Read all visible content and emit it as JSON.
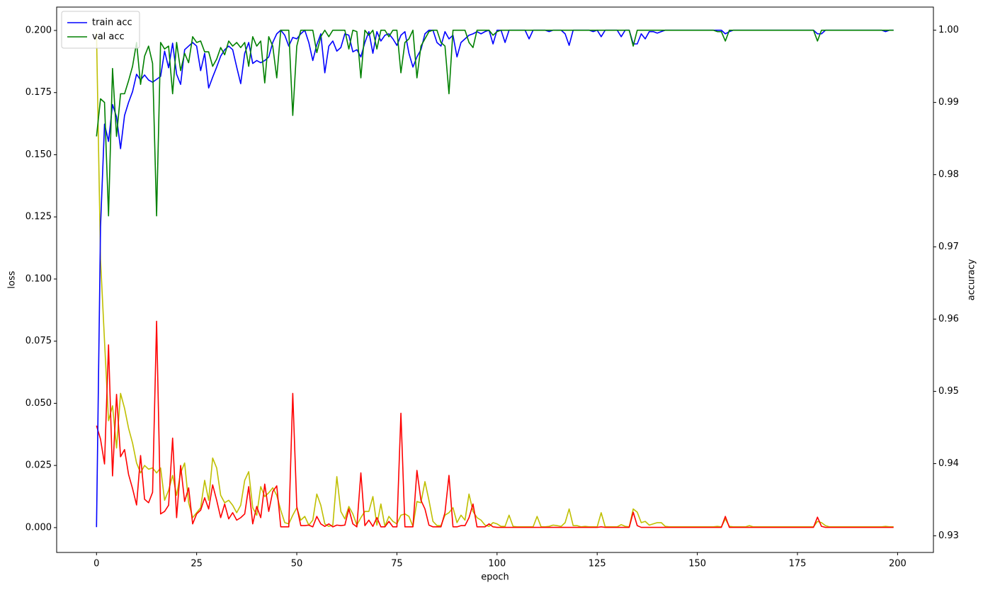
{
  "chart_data": {
    "type": "line",
    "x_label": "epoch",
    "y_label": "loss",
    "y2_label": "accuracy",
    "xlim": [
      -9.95,
      208.95
    ],
    "xticks": [
      0,
      25,
      50,
      75,
      100,
      125,
      150,
      175,
      200
    ],
    "ylim": [
      -0.01,
      0.2094
    ],
    "yticks": [
      {
        "value": 0,
        "label": "0.000"
      },
      {
        "value": 0.025,
        "label": "0.025"
      },
      {
        "value": 0.05,
        "label": "0.050"
      },
      {
        "value": 0.075,
        "label": "0.075"
      },
      {
        "value": 0.1,
        "label": "0.100"
      },
      {
        "value": 0.125,
        "label": "0.125"
      },
      {
        "value": 0.15,
        "label": "0.150"
      },
      {
        "value": 0.175,
        "label": "0.175"
      },
      {
        "value": 0.2,
        "label": "0.200"
      }
    ],
    "y2lim": [
      0.9277,
      1.0032
    ],
    "y2ticks": [
      0.93,
      0.94,
      0.95,
      0.96,
      0.97,
      0.98,
      0.99,
      {
        "value": 1,
        "label": "1.00"
      }
    ],
    "legend": "upper left",
    "x": [
      0,
      1,
      2,
      3,
      4,
      5,
      6,
      7,
      8,
      9,
      10,
      11,
      12,
      13,
      14,
      15,
      16,
      17,
      18,
      19,
      20,
      21,
      22,
      23,
      24,
      25,
      26,
      27,
      28,
      29,
      30,
      31,
      32,
      33,
      34,
      35,
      36,
      37,
      38,
      39,
      40,
      41,
      42,
      43,
      44,
      45,
      46,
      47,
      48,
      49,
      50,
      51,
      52,
      53,
      54,
      55,
      56,
      57,
      58,
      59,
      60,
      61,
      62,
      63,
      64,
      65,
      66,
      67,
      68,
      69,
      70,
      71,
      72,
      73,
      74,
      75,
      76,
      77,
      78,
      79,
      80,
      81,
      82,
      83,
      84,
      85,
      86,
      87,
      88,
      89,
      90,
      91,
      92,
      93,
      94,
      95,
      96,
      97,
      98,
      99,
      100,
      101,
      102,
      103,
      104,
      105,
      106,
      107,
      108,
      109,
      110,
      111,
      112,
      113,
      114,
      115,
      116,
      117,
      118,
      119,
      120,
      121,
      122,
      123,
      124,
      125,
      126,
      127,
      128,
      129,
      130,
      131,
      132,
      133,
      134,
      135,
      136,
      137,
      138,
      139,
      140,
      141,
      142,
      143,
      144,
      145,
      146,
      147,
      148,
      149,
      150,
      151,
      152,
      153,
      154,
      155,
      156,
      157,
      158,
      159,
      160,
      161,
      162,
      163,
      164,
      165,
      166,
      167,
      168,
      169,
      170,
      171,
      172,
      173,
      174,
      175,
      176,
      177,
      178,
      179,
      180,
      181,
      182,
      183,
      184,
      185,
      186,
      187,
      188,
      189,
      190,
      191,
      192,
      193,
      194,
      195,
      196,
      197,
      198,
      199
    ],
    "series": [
      {
        "color": "#bfbf00",
        "axis": "y",
        "values": [
          0.199,
          0.108,
          0.075,
          0.043,
          0.049,
          0.032,
          0.054,
          0.048,
          0.04,
          0.034,
          0.026,
          0.022,
          0.025,
          0.0235,
          0.024,
          0.022,
          0.024,
          0.011,
          0.015,
          0.021,
          0.013,
          0.022,
          0.026,
          0.01,
          0.004,
          0.006,
          0.008,
          0.019,
          0.011,
          0.028,
          0.024,
          0.013,
          0.01,
          0.011,
          0.009,
          0.006,
          0.009,
          0.019,
          0.0225,
          0.008,
          0.005,
          0.0165,
          0.0125,
          0.014,
          0.016,
          0.013,
          0.007,
          0.002,
          0.0015,
          0.005,
          0.008,
          0.003,
          0.0045,
          0.001,
          0.003,
          0.0135,
          0.009,
          0.0015,
          0.0005,
          0.001,
          0.0205,
          0.0065,
          0.0035,
          0.0085,
          0.0055,
          0.001,
          0.004,
          0.0065,
          0.0065,
          0.0125,
          0.001,
          0.0095,
          0.0005,
          0.0045,
          0.0025,
          0.0015,
          0.005,
          0.0055,
          0.0045,
          0.0005,
          0.0105,
          0.01,
          0.0185,
          0.011,
          0.0025,
          0.0008,
          0.0008,
          0.005,
          0.006,
          0.008,
          0.002,
          0.005,
          0.003,
          0.0135,
          0.0065,
          0.004,
          0.003,
          0.001,
          0.0005,
          0.002,
          0.0015,
          0.0005,
          0.0005,
          0.005,
          0.0005,
          0.0003,
          0.0003,
          0.0003,
          0.0003,
          0.0003,
          0.0045,
          0.0003,
          0.0003,
          0.0005,
          0.001,
          0.0008,
          0.0005,
          0.002,
          0.0075,
          0.0008,
          0.0008,
          0.0003,
          0.0005,
          0.0003,
          0.0003,
          0.0003,
          0.006,
          0.0003,
          0.0003,
          0.0003,
          0.0003,
          0.0012,
          0.0005,
          0.0003,
          0.0075,
          0.0062,
          0.002,
          0.0025,
          0.001,
          0.0015,
          0.002,
          0.002,
          0.0005,
          0.0003,
          0.0003,
          0.0003,
          0.0003,
          0.0003,
          0.0003,
          0.0003,
          0.0003,
          0.0003,
          0.0003,
          0.0003,
          0.0003,
          0.0005,
          0.0003,
          0.0035,
          0.0005,
          0.0003,
          0.0003,
          0.0003,
          0.0003,
          0.0008,
          0.0003,
          0.0003,
          0.0003,
          0.0003,
          0.0003,
          0.0003,
          0.0003,
          0.0003,
          0.0003,
          0.0003,
          0.0003,
          0.0003,
          0.0003,
          0.0003,
          0.0003,
          0.0003,
          0.0025,
          0.002,
          0.0008,
          0.0003,
          0.0003,
          0.0003,
          0.0003,
          0.0003,
          0.0003,
          0.0003,
          0.0003,
          0.0003,
          0.0003,
          0.0003,
          0.0003,
          0.0003,
          0.0003,
          0.0005,
          0.0003,
          0.0003
        ]
      },
      {
        "color": "#ff0000",
        "axis": "y",
        "values": [
          0.041,
          0.0356,
          0.0256,
          0.0735,
          0.0208,
          0.0536,
          0.0285,
          0.0314,
          0.0214,
          0.0157,
          0.0091,
          0.029,
          0.0114,
          0.01,
          0.0142,
          0.083,
          0.0055,
          0.0065,
          0.009,
          0.036,
          0.004,
          0.025,
          0.0105,
          0.016,
          0.0015,
          0.0055,
          0.007,
          0.012,
          0.0075,
          0.0172,
          0.011,
          0.004,
          0.0095,
          0.0035,
          0.006,
          0.003,
          0.004,
          0.0055,
          0.0165,
          0.0015,
          0.0085,
          0.004,
          0.0175,
          0.0065,
          0.0145,
          0.0168,
          0.0003,
          0.0003,
          0.0003,
          0.054,
          0.0085,
          0.0008,
          0.0008,
          0.001,
          0.0003,
          0.0045,
          0.0015,
          0.0005,
          0.0015,
          0.0003,
          0.001,
          0.0008,
          0.001,
          0.0075,
          0.0015,
          0.0003,
          0.022,
          0.0008,
          0.003,
          0.0005,
          0.004,
          0.0003,
          0.0003,
          0.0025,
          0.0003,
          0.0003,
          0.046,
          0.0003,
          0.0003,
          0.0003,
          0.023,
          0.011,
          0.0075,
          0.001,
          0.0003,
          0.0003,
          0.0003,
          0.006,
          0.021,
          0.0003,
          0.0003,
          0.0008,
          0.0008,
          0.004,
          0.0095,
          0.0003,
          0.0003,
          0.0003,
          0.0015,
          0.0003,
          0.0001,
          0.0001,
          0.0001,
          0.0001,
          0.0001,
          0.0001,
          0.0001,
          0.0001,
          0.0001,
          0.0001,
          0.0001,
          0.0001,
          0.0001,
          0.0001,
          0.0001,
          0.0001,
          0.0001,
          0.0001,
          0.0001,
          0.0001,
          0.0001,
          0.0001,
          0.0001,
          0.0001,
          0.0001,
          0.0001,
          0.0003,
          0.0001,
          0.0001,
          0.0001,
          0.0001,
          0.0001,
          0.0001,
          0.0001,
          0.0062,
          0.0008,
          0.0001,
          0.0001,
          0.0001,
          0.0001,
          0.0001,
          0.0001,
          0.0001,
          0.0001,
          0.0001,
          0.0001,
          0.0001,
          0.0001,
          0.0001,
          0.0001,
          0.0001,
          0.0001,
          0.0001,
          0.0001,
          0.0001,
          0.0001,
          0.0001,
          0.0045,
          0.0001,
          0.0001,
          0.0001,
          0.0001,
          0.0001,
          0.0001,
          0.0001,
          0.0001,
          0.0001,
          0.0001,
          0.0001,
          0.0001,
          0.0001,
          0.0001,
          0.0001,
          0.0001,
          0.0001,
          0.0001,
          0.0001,
          0.0001,
          0.0001,
          0.0001,
          0.0042,
          0.0005,
          0.0001,
          0.0001,
          0.0001,
          0.0001,
          0.0001,
          0.0001,
          0.0001,
          0.0001,
          0.0001,
          0.0001,
          0.0001,
          0.0001,
          0.0001,
          0.0001,
          0.0001,
          0.0001,
          0.0001,
          0.0001
        ]
      },
      {
        "name": "train acc",
        "color": "#0000ff",
        "axis": "y2",
        "values": [
          0.9312,
          0.9728,
          0.987,
          0.9846,
          0.9897,
          0.988,
          0.9836,
          0.9882,
          0.99,
          0.9915,
          0.9939,
          0.9931,
          0.9938,
          0.9931,
          0.9928,
          0.9932,
          0.9936,
          0.9971,
          0.9948,
          0.9982,
          0.9939,
          0.9925,
          0.9973,
          0.9978,
          0.9983,
          0.9978,
          0.9944,
          0.9968,
          0.992,
          0.9935,
          0.9949,
          0.9964,
          0.9973,
          0.9978,
          0.9973,
          0.9949,
          0.9926,
          0.9968,
          0.9983,
          0.9954,
          0.9958,
          0.9955,
          0.9958,
          0.9963,
          0.9983,
          0.9995,
          1.0,
          0.9993,
          0.9978,
          0.999,
          0.9988,
          0.9995,
          1.0,
          0.9983,
          0.9958,
          0.998,
          0.9995,
          0.9941,
          0.9978,
          0.9985,
          0.9971,
          0.9976,
          0.9995,
          0.9993,
          0.997,
          0.9973,
          0.9963,
          0.9983,
          0.9998,
          0.9968,
          0.9998,
          0.9985,
          0.9993,
          0.9995,
          0.9988,
          0.9979,
          0.9993,
          0.9998,
          0.9968,
          0.9949,
          0.9963,
          0.9973,
          0.9995,
          1.0,
          1.0,
          0.9983,
          0.9978,
          0.9998,
          0.9988,
          0.9993,
          0.9963,
          0.9983,
          0.9988,
          0.9993,
          0.9995,
          0.9998,
          0.9995,
          0.9998,
          1.0,
          0.9981,
          1.0,
          1.0,
          0.9983,
          1.0,
          1.0,
          1.0,
          1.0,
          1.0,
          0.9988,
          1.0,
          1.0,
          1.0,
          1.0,
          0.9998,
          1.0,
          1.0,
          1.0,
          0.9995,
          0.9979,
          1.0,
          1.0,
          1.0,
          1.0,
          1.0,
          0.9998,
          1.0,
          0.9991,
          1.0,
          1.0,
          1.0,
          1.0,
          0.9991,
          1.0,
          1.0,
          0.9981,
          0.9981,
          0.9995,
          0.9988,
          0.9998,
          0.9998,
          0.9996,
          0.9998,
          1.0,
          1.0,
          1.0,
          1.0,
          1.0,
          1.0,
          1.0,
          1.0,
          1.0,
          1.0,
          1.0,
          1.0,
          1.0,
          1.0,
          1.0,
          0.9995,
          0.9998,
          1.0,
          1.0,
          1.0,
          1.0,
          1.0,
          1.0,
          1.0,
          1.0,
          1.0,
          1.0,
          1.0,
          1.0,
          1.0,
          1.0,
          1.0,
          1.0,
          1.0,
          1.0,
          1.0,
          1.0,
          1.0,
          0.9995,
          0.9995,
          1.0,
          1.0,
          1.0,
          1.0,
          1.0,
          1.0,
          1.0,
          1.0,
          1.0,
          1.0,
          1.0,
          1.0,
          1.0,
          1.0,
          1.0,
          0.9998,
          1.0,
          1.0
        ]
      },
      {
        "name": "val acc",
        "color": "#008000",
        "axis": "y2",
        "values": [
          0.9853,
          0.9905,
          0.99,
          0.9743,
          0.9947,
          0.9853,
          0.9912,
          0.9912,
          0.993,
          0.995,
          0.9983,
          0.9925,
          0.9964,
          0.9978,
          0.9954,
          0.9743,
          0.9983,
          0.9974,
          0.9978,
          0.9912,
          0.9983,
          0.9944,
          0.9968,
          0.9955,
          0.9991,
          0.9983,
          0.9985,
          0.997,
          0.997,
          0.995,
          0.996,
          0.9976,
          0.9966,
          0.9985,
          0.9978,
          0.9983,
          0.9976,
          0.9983,
          0.995,
          0.9991,
          0.9978,
          0.9985,
          0.9927,
          0.9991,
          0.9978,
          0.9934,
          1.0,
          1.0,
          1.0,
          0.9882,
          0.9978,
          1.0,
          1.0,
          1.0,
          1.0,
          0.9969,
          0.9991,
          1.0,
          0.9991,
          1.0,
          1.0,
          1.0,
          1.0,
          0.9974,
          1.0,
          0.9998,
          0.9934,
          1.0,
          0.9993,
          1.0,
          0.9974,
          1.0,
          1.0,
          0.9991,
          1.0,
          1.0,
          0.9941,
          0.9983,
          0.9988,
          1.0,
          0.9934,
          0.9978,
          0.9988,
          0.9998,
          1.0,
          1.0,
          0.9983,
          0.9978,
          0.9912,
          1.0,
          1.0,
          1.0,
          1.0,
          0.9983,
          0.9976,
          1.0,
          1.0,
          1.0,
          1.0,
          0.9993,
          0.9998,
          1.0,
          1.0,
          1.0,
          1.0,
          1.0,
          1.0,
          1.0,
          1.0,
          1.0,
          1.0,
          1.0,
          1.0,
          1.0,
          1.0,
          1.0,
          1.0,
          1.0,
          1.0,
          1.0,
          1.0,
          1.0,
          1.0,
          1.0,
          1.0,
          1.0,
          1.0,
          1.0,
          1.0,
          1.0,
          1.0,
          1.0,
          1.0,
          1.0,
          0.9978,
          1.0,
          1.0,
          1.0,
          1.0,
          1.0,
          1.0,
          1.0,
          1.0,
          1.0,
          1.0,
          1.0,
          1.0,
          1.0,
          1.0,
          1.0,
          1.0,
          1.0,
          1.0,
          1.0,
          1.0,
          0.9998,
          0.9998,
          0.9985,
          1.0,
          1.0,
          1.0,
          1.0,
          1.0,
          1.0,
          1.0,
          1.0,
          1.0,
          1.0,
          1.0,
          1.0,
          1.0,
          1.0,
          1.0,
          1.0,
          1.0,
          1.0,
          1.0,
          1.0,
          1.0,
          1.0,
          0.9985,
          1.0,
          1.0,
          1.0,
          1.0,
          1.0,
          1.0,
          1.0,
          1.0,
          1.0,
          1.0,
          1.0,
          1.0,
          1.0,
          1.0,
          1.0,
          1.0,
          1.0,
          1.0,
          1.0
        ]
      }
    ]
  }
}
